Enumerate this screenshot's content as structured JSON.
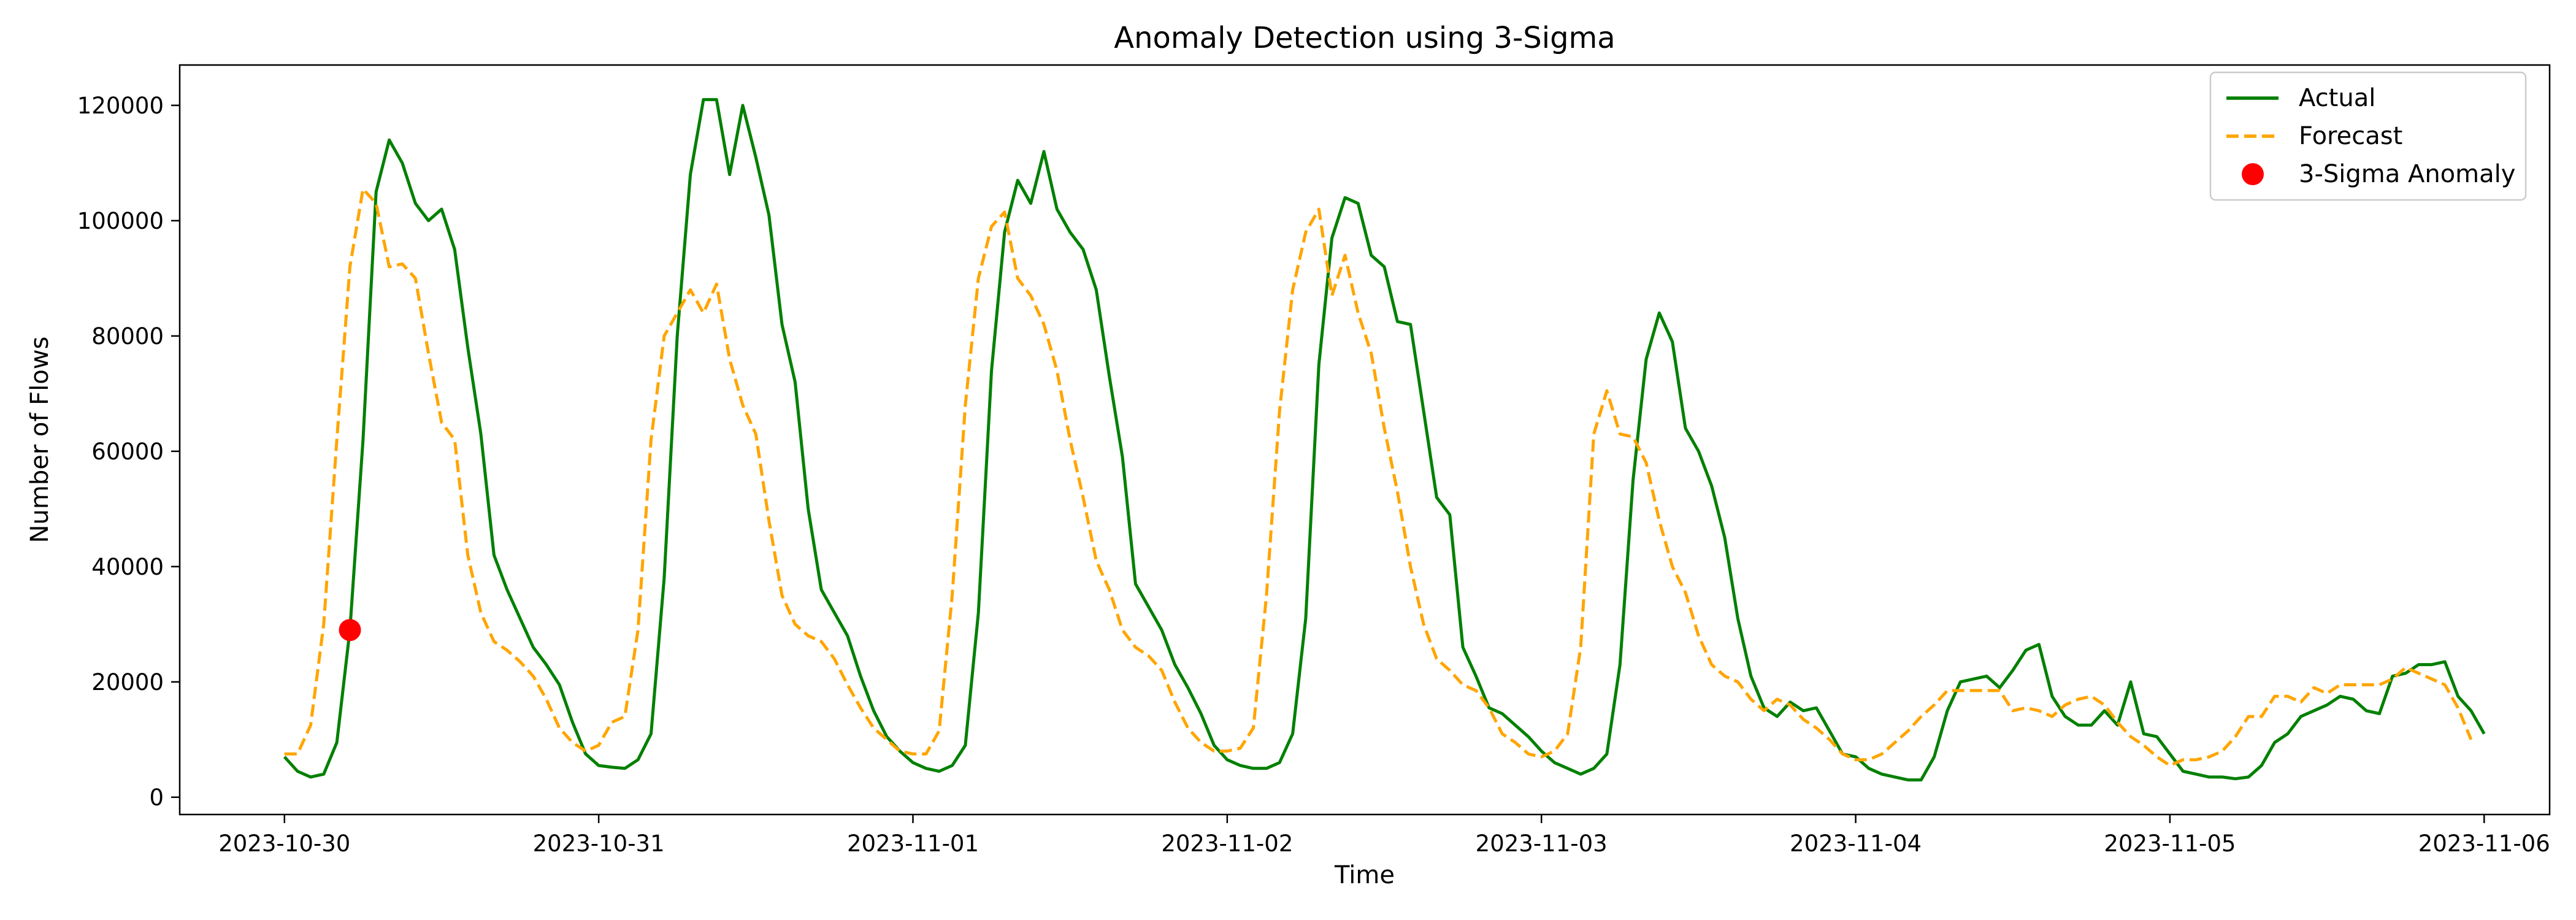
{
  "chart_data": {
    "type": "line",
    "title": "Anomaly Detection using 3-Sigma",
    "xlabel": "Time",
    "ylabel": "Number of Flows",
    "x_start": "2023-10-30T00:00",
    "x_step_hours": 1,
    "xlim": [
      "2023-10-29T16:00",
      "2023-11-06T05:00"
    ],
    "ylim": [
      -3000,
      127000
    ],
    "x_ticks": [
      "2023-10-30",
      "2023-10-31",
      "2023-11-01",
      "2023-11-02",
      "2023-11-03",
      "2023-11-04",
      "2023-11-05",
      "2023-11-06"
    ],
    "y_ticks": [
      0,
      20000,
      40000,
      60000,
      80000,
      100000,
      120000
    ],
    "y_tick_labels": [
      "0",
      "20000",
      "40000",
      "60000",
      "80000",
      "100000",
      "120000"
    ],
    "grid": false,
    "legend_position": "top-right",
    "series": [
      {
        "name": "Actual",
        "color": "#008000",
        "style": "solid",
        "values": [
          7000,
          4500,
          3500,
          4000,
          9500,
          29000,
          62000,
          105000,
          114000,
          110000,
          103000,
          100000,
          102000,
          95000,
          78000,
          63000,
          42000,
          36000,
          31000,
          26000,
          23000,
          19500,
          13000,
          7500,
          5500,
          5200,
          5000,
          6500,
          11000,
          38000,
          80000,
          108000,
          121000,
          121000,
          108000,
          120000,
          111000,
          101000,
          82000,
          72000,
          50000,
          36000,
          32000,
          28000,
          21000,
          15000,
          10500,
          8000,
          6000,
          5000,
          4500,
          5500,
          9000,
          32000,
          74000,
          98000,
          107000,
          103000,
          112000,
          102000,
          98000,
          95000,
          88000,
          73000,
          59000,
          37000,
          33000,
          29000,
          23000,
          19000,
          14500,
          9000,
          6500,
          5500,
          5000,
          5000,
          6000,
          11000,
          31000,
          75000,
          97000,
          104000,
          103000,
          94000,
          92000,
          82500,
          82000,
          67000,
          52000,
          49000,
          26000,
          21000,
          15500,
          14500,
          12500,
          10500,
          8000,
          6000,
          5000,
          4000,
          5000,
          7500,
          23000,
          55000,
          76000,
          84000,
          79000,
          64000,
          60000,
          54000,
          45000,
          31000,
          21000,
          15500,
          14000,
          16500,
          15000,
          15500,
          11500,
          7500,
          7000,
          5000,
          4000,
          3500,
          3000,
          3000,
          7000,
          15000,
          20000,
          20500,
          21000,
          19000,
          22000,
          25500,
          26500,
          17500,
          14000,
          12500,
          12500,
          15000,
          12500,
          20000,
          11000,
          10500,
          7500,
          4500,
          4000,
          3500,
          3500,
          3200,
          3500,
          5500,
          9500,
          11000,
          14000,
          15000,
          16000,
          17500,
          17000,
          15000,
          14500,
          21000,
          21500,
          23000,
          23000,
          23500,
          17500,
          15000,
          11000
        ],
        "forecast_values": null
      },
      {
        "name": "Forecast",
        "color": "#FFA500",
        "style": "dashed",
        "values": [
          7500,
          7500,
          12500,
          30000,
          62000,
          92000,
          105500,
          103000,
          92000,
          92500,
          90000,
          77000,
          65000,
          62000,
          42000,
          32000,
          27000,
          25500,
          23500,
          21000,
          17000,
          12000,
          9500,
          8000,
          9000,
          13000,
          14000,
          29000,
          62000,
          80000,
          84000,
          88000,
          84000,
          89000,
          76000,
          68000,
          63000,
          48000,
          35000,
          30000,
          28000,
          27000,
          24000,
          19500,
          15500,
          12000,
          10000,
          8000,
          7500,
          7500,
          11500,
          35000,
          68000,
          90000,
          99000,
          101500,
          90000,
          87000,
          82000,
          74000,
          62000,
          52000,
          41000,
          36000,
          29000,
          26000,
          24500,
          22000,
          16500,
          12000,
          9500,
          8000,
          8000,
          8500,
          12000,
          35000,
          67000,
          88000,
          98000,
          102000,
          87000,
          94000,
          84000,
          77000,
          64000,
          53000,
          40000,
          30000,
          24000,
          22000,
          19500,
          18500,
          15500,
          11000,
          9500,
          7500,
          7000,
          8000,
          11000,
          26000,
          63000,
          70500,
          63000,
          62500,
          58000,
          48000,
          40000,
          35500,
          28000,
          23000,
          21000,
          20000,
          17000,
          15000,
          17000,
          16000,
          13500,
          12000,
          10000,
          7500,
          6500,
          6500,
          7500,
          9500,
          11500,
          14000,
          16000,
          18500,
          18500,
          18500,
          18500,
          18500,
          15000,
          15500,
          15000,
          14000,
          16000,
          17000,
          17500,
          16000,
          13000,
          10500,
          9000,
          7000,
          5500,
          6500,
          6500,
          7000,
          8000,
          10500,
          14000,
          14000,
          17500,
          17500,
          16500,
          19000,
          18000,
          19500,
          19500,
          19500,
          19500,
          20500,
          22500,
          21500,
          20500,
          19500,
          15500,
          10000
        ]
      }
    ],
    "anomalies": {
      "name": "3-Sigma Anomaly",
      "color": "#FF0000",
      "points": [
        {
          "x": "2023-10-30T05:00",
          "y": 29000
        }
      ]
    }
  }
}
